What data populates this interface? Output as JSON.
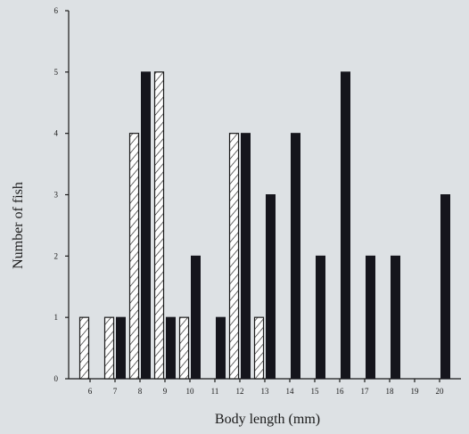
{
  "chart_data": {
    "type": "bar",
    "xlabel": "Body length (mm)",
    "ylabel": "Number of fish",
    "ylim": [
      0,
      6
    ],
    "yticks": [
      "0",
      "1",
      "2",
      "3",
      "4",
      "5",
      "6"
    ],
    "categories": [
      "6",
      "7",
      "8",
      "9",
      "10",
      "11",
      "12",
      "13",
      "14",
      "15",
      "16",
      "17",
      "18",
      "19",
      "20"
    ],
    "series": [
      {
        "pattern": "hatched",
        "color": "#ffffff",
        "values": [
          1,
          1,
          4,
          5,
          1,
          0,
          4,
          1,
          0,
          0,
          0,
          0,
          0,
          0,
          0
        ]
      },
      {
        "pattern": "solid",
        "color": "#15151c",
        "values": [
          0,
          1,
          5,
          1,
          2,
          1,
          4,
          3,
          4,
          2,
          5,
          2,
          2,
          0,
          3
        ]
      }
    ],
    "grid": false,
    "legend": "none"
  }
}
